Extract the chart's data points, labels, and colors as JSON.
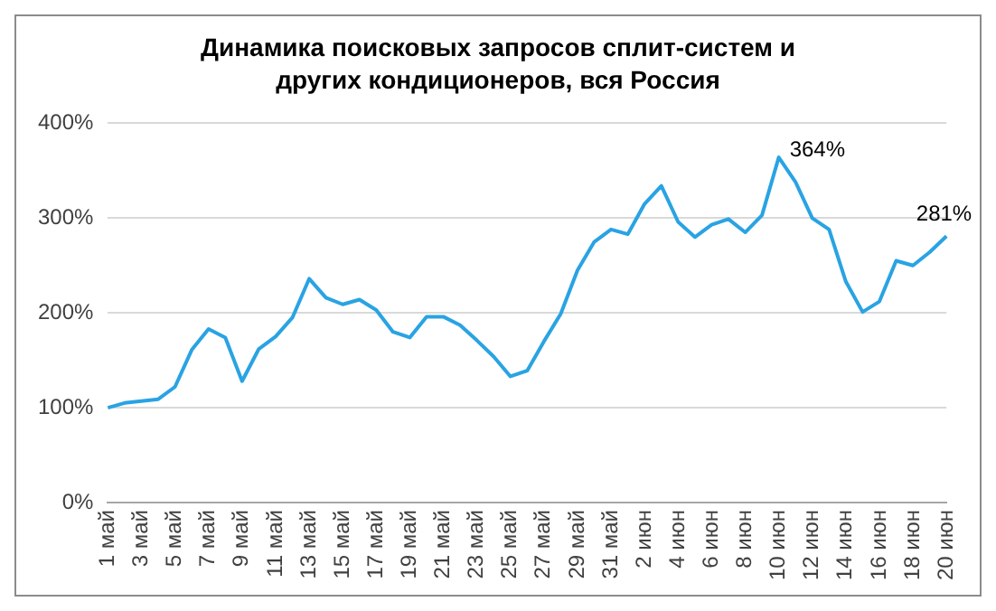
{
  "chart_data": {
    "type": "line",
    "title": "Динамика поисковых запросов сплит-систем и других кондиционеров, вся Россия",
    "categories": [
      "1 май",
      null,
      "3 май",
      null,
      "5 май",
      null,
      "7 май",
      null,
      "9 май",
      null,
      "11 май",
      null,
      "13 май",
      null,
      "15 май",
      null,
      "17 май",
      null,
      "19 май",
      null,
      "21 май",
      null,
      "23 май",
      null,
      "25 май",
      null,
      "27 май",
      null,
      "29 май",
      null,
      "31 май",
      null,
      "2 июн",
      null,
      "4 июн",
      null,
      "6 июн",
      null,
      "8 июн",
      null,
      "10 июн",
      null,
      "12 июн",
      null,
      "14 июн",
      null,
      "16 июн",
      null,
      "18 июн",
      null,
      "20 июн"
    ],
    "series": [
      {
        "color": "#29a3e3",
        "values": [
          100,
          105,
          107,
          109,
          122,
          161,
          183,
          174,
          128,
          162,
          175,
          195,
          236,
          216,
          209,
          214,
          203,
          180,
          174,
          196,
          196,
          187,
          171,
          154,
          133,
          139,
          170,
          199,
          245,
          275,
          288,
          283,
          315,
          334,
          296,
          280,
          293,
          299,
          285,
          303,
          364,
          338,
          300,
          288,
          233,
          201,
          212,
          255,
          250,
          264,
          281
        ],
        "value_labels": [
          null,
          null,
          null,
          null,
          null,
          null,
          null,
          null,
          null,
          null,
          null,
          null,
          null,
          null,
          null,
          null,
          null,
          null,
          null,
          null,
          null,
          null,
          null,
          null,
          null,
          null,
          null,
          null,
          null,
          null,
          null,
          null,
          null,
          null,
          null,
          null,
          null,
          null,
          null,
          null,
          "364%",
          null,
          null,
          null,
          null,
          null,
          null,
          null,
          null,
          null,
          "281%"
        ]
      }
    ],
    "ylim": [
      0,
      400
    ],
    "yticks": [
      {
        "value": 0,
        "label": "0%"
      },
      {
        "value": 100,
        "label": "100%"
      },
      {
        "value": 200,
        "label": "200%"
      },
      {
        "value": 300,
        "label": "300%"
      },
      {
        "value": 400,
        "label": "400%"
      }
    ],
    "grid": "y",
    "legend": false,
    "marker": "none",
    "line_style": "solid"
  }
}
